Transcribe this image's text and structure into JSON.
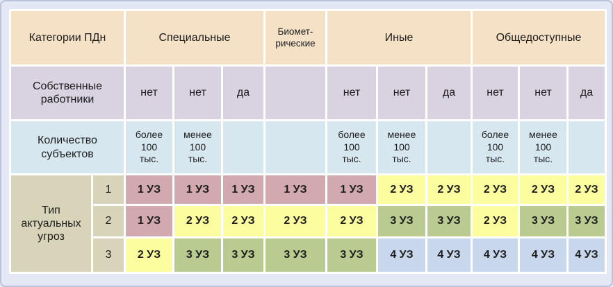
{
  "colors": {
    "page": "#e4e8f5",
    "border": "#b8c3db",
    "gap": "#ffffff",
    "cream": "#f5e1c6",
    "lavender": "#d8d2e1",
    "lightblue": "#d7e7ef",
    "khaki": "#d8d4b9",
    "lv1": "#d2a9ae",
    "lv2": "#fbfd9f",
    "lv3": "#b9cb90",
    "lv4": "#c9d7ed"
  },
  "chart_data": {
    "type": "table",
    "header": {
      "corner": "Категории ПДн",
      "groups": [
        {
          "label": "Специальные",
          "span": 3
        },
        {
          "label": "Биомет-\nрические",
          "span": 1
        },
        {
          "label": "Иные",
          "span": 3
        },
        {
          "label": "Общедоступные",
          "span": 3
        }
      ]
    },
    "rows": {
      "employees": {
        "label": "Собственные работники",
        "values": [
          "нет",
          "нет",
          "да",
          "",
          "нет",
          "нет",
          "да",
          "нет",
          "нет",
          "да"
        ]
      },
      "subjects": {
        "label": "Количество субъектов",
        "values": [
          "более\n100\nтыс.",
          "менее\n100\nтыс.",
          "",
          "",
          "более\n100\nтыс.",
          "менее\n100\nтыс.",
          "",
          "более\n100\nтыс.",
          "менее\n100\nтыс.",
          ""
        ]
      },
      "threats": {
        "label": "Тип актуальных угроз",
        "rows": [
          {
            "type": "1",
            "cells": [
              {
                "label": "1 УЗ",
                "level": "lv1"
              },
              {
                "label": "1 УЗ",
                "level": "lv1"
              },
              {
                "label": "1 УЗ",
                "level": "lv1"
              },
              {
                "label": "1 УЗ",
                "level": "lv1"
              },
              {
                "label": "1 УЗ",
                "level": "lv1"
              },
              {
                "label": "2 УЗ",
                "level": "lv2"
              },
              {
                "label": "2 УЗ",
                "level": "lv2"
              },
              {
                "label": "2 УЗ",
                "level": "lv2"
              },
              {
                "label": "2 УЗ",
                "level": "lv2"
              },
              {
                "label": "2 УЗ",
                "level": "lv2"
              }
            ]
          },
          {
            "type": "2",
            "cells": [
              {
                "label": "1 УЗ",
                "level": "lv1"
              },
              {
                "label": "2 УЗ",
                "level": "lv2"
              },
              {
                "label": "2 УЗ",
                "level": "lv2"
              },
              {
                "label": "2 УЗ",
                "level": "lv2"
              },
              {
                "label": "2 УЗ",
                "level": "lv2"
              },
              {
                "label": "3 УЗ",
                "level": "lv3"
              },
              {
                "label": "3 УЗ",
                "level": "lv3"
              },
              {
                "label": "2 УЗ",
                "level": "lv2"
              },
              {
                "label": "3 УЗ",
                "level": "lv3"
              },
              {
                "label": "3 УЗ",
                "level": "lv3"
              }
            ]
          },
          {
            "type": "3",
            "cells": [
              {
                "label": "2 УЗ",
                "level": "lv2"
              },
              {
                "label": "3 УЗ",
                "level": "lv3"
              },
              {
                "label": "3 УЗ",
                "level": "lv3"
              },
              {
                "label": "3 УЗ",
                "level": "lv3"
              },
              {
                "label": "3 УЗ",
                "level": "lv3"
              },
              {
                "label": "4 УЗ",
                "level": "lv4"
              },
              {
                "label": "4 УЗ",
                "level": "lv4"
              },
              {
                "label": "4 УЗ",
                "level": "lv4"
              },
              {
                "label": "4 УЗ",
                "level": "lv4"
              },
              {
                "label": "4 УЗ",
                "level": "lv4"
              }
            ]
          }
        ]
      }
    }
  }
}
